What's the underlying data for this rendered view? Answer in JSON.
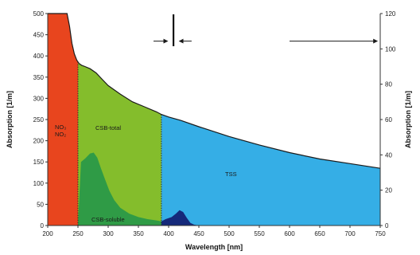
{
  "chart_data": {
    "type": "area",
    "xlabel": "Wavelength [nm]",
    "ylabel": "Absorption [1/m]",
    "y2label": "Absorption [1/m]",
    "xlim": [
      200,
      750
    ],
    "ylim": [
      0,
      500
    ],
    "y2lim": [
      0,
      120
    ],
    "x_ticks": [
      "200",
      "250",
      "300",
      "350",
      "400",
      "450",
      "500",
      "550",
      "600",
      "650",
      "700",
      "750"
    ],
    "y_ticks": [
      "0",
      "50",
      "100",
      "150",
      "200",
      "250",
      "300",
      "350",
      "400",
      "450",
      "500"
    ],
    "y2_ticks": [
      "0",
      "20",
      "40",
      "60",
      "80",
      "100",
      "120"
    ],
    "grid": false,
    "boundaries": [
      250,
      388
    ],
    "total_curve": {
      "x": [
        200,
        232,
        236,
        240,
        244,
        248,
        252,
        256,
        260,
        270,
        280,
        290,
        300,
        320,
        340,
        360,
        380,
        388,
        400,
        420,
        450,
        500,
        550,
        600,
        650,
        700,
        750
      ],
      "y": [
        500,
        500,
        470,
        430,
        405,
        390,
        382,
        378,
        376,
        370,
        360,
        345,
        330,
        310,
        292,
        280,
        268,
        262,
        256,
        248,
        233,
        210,
        190,
        172,
        157,
        146,
        135
      ]
    },
    "series": [
      {
        "name": "NO3, NO2",
        "label": [
          "NO₃",
          "NO₂"
        ],
        "color": "#e8451e",
        "x": [
          200,
          250
        ],
        "y": [
          500,
          500
        ]
      },
      {
        "name": "CSB-total",
        "label": "CSB-total",
        "color": "#84bd2c",
        "x": [
          250,
          388
        ],
        "y": [
          382,
          262
        ]
      },
      {
        "name": "CSB-soluble",
        "label": "CSB-soluble",
        "color": "#2f9b46",
        "x": [
          250,
          255,
          262,
          270,
          276,
          282,
          288,
          295,
          302,
          310,
          320,
          335,
          350,
          365,
          380,
          388
        ],
        "y": [
          0,
          150,
          158,
          170,
          172,
          160,
          135,
          108,
          82,
          60,
          42,
          28,
          20,
          15,
          12,
          10
        ]
      },
      {
        "name": "TSS",
        "label": "TSS",
        "color": "#35aee6",
        "x": [
          388,
          750
        ],
        "y": [
          262,
          135
        ]
      },
      {
        "name": "peak",
        "label": "",
        "color": "#15297a",
        "x": [
          388,
          395,
          405,
          412,
          418,
          424,
          430,
          436,
          442,
          450
        ],
        "y": [
          10,
          15,
          20,
          28,
          36,
          32,
          18,
          6,
          2,
          0
        ]
      }
    ],
    "annotations": {
      "marker_x": 408,
      "arrows": [
        {
          "from": 375,
          "to": 398,
          "y": 435
        },
        {
          "from": 438,
          "to": 418,
          "y": 435
        },
        {
          "from": 600,
          "to": 745,
          "y": 435
        }
      ]
    }
  }
}
